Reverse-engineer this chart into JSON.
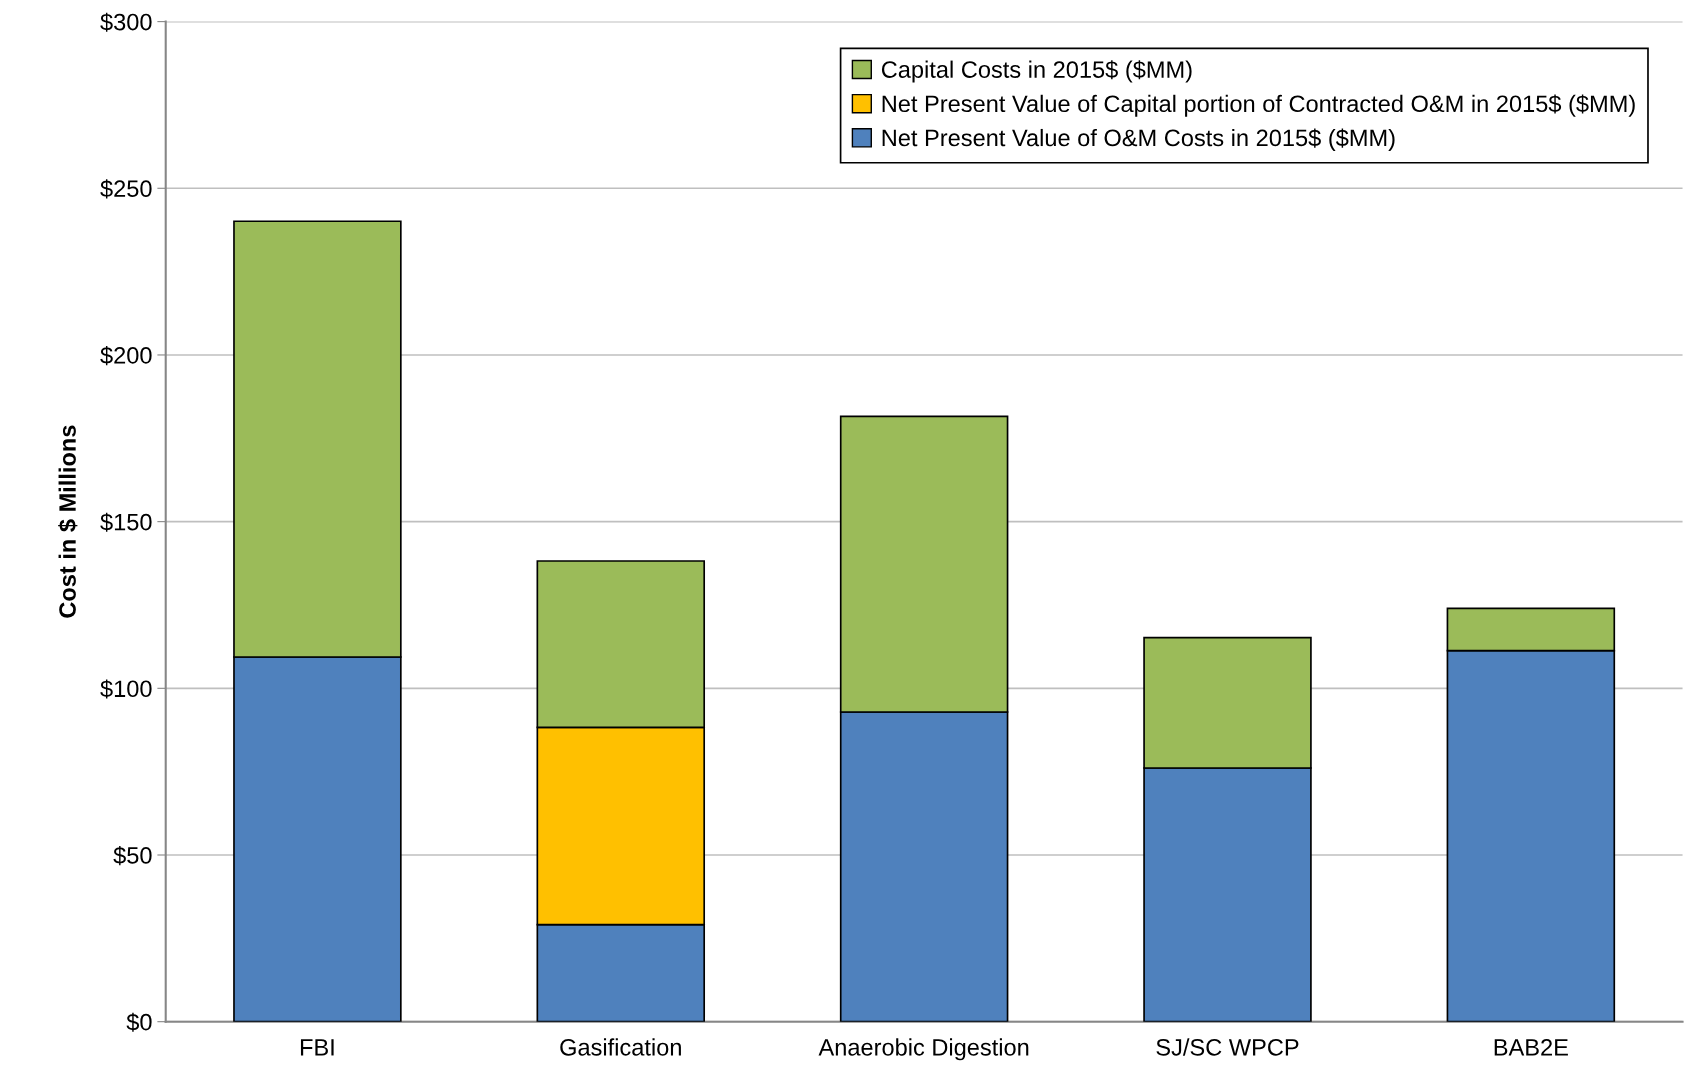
{
  "chart_data": {
    "type": "bar",
    "stacked": true,
    "ylabel": "Cost in $ Millions",
    "categories": [
      "FBI",
      "Gasification",
      "Anaerobic Digestion",
      "SJ/SC WPCP",
      "BAB2E"
    ],
    "series": [
      {
        "name": "Net Present Value of O&M Costs in 2015$ ($MM)",
        "color": "#4f81bd",
        "values": [
          109.4,
          29.1,
          92.9,
          76.1,
          111.3
        ]
      },
      {
        "name": "Net Present Value of Capital portion of Contracted O&M in 2015$ ($MM)",
        "color": "#ffc000",
        "values": [
          null,
          59.2,
          null,
          null,
          null
        ]
      },
      {
        "name": "Capital Costs in 2015$ ($MM)",
        "color": "#9bbb59",
        "values": [
          130.7,
          49.9,
          88.7,
          39.1,
          12.7
        ]
      }
    ],
    "ylim": [
      0,
      300
    ],
    "yticks": [
      {
        "value": 0,
        "label": "$0"
      },
      {
        "value": 50,
        "label": "$50"
      },
      {
        "value": 100,
        "label": "$100"
      },
      {
        "value": 150,
        "label": "$150"
      },
      {
        "value": 200,
        "label": "$200"
      },
      {
        "value": 250,
        "label": "$250"
      },
      {
        "value": 300,
        "label": "$300"
      }
    ],
    "grid": "y",
    "legend": "top right"
  }
}
